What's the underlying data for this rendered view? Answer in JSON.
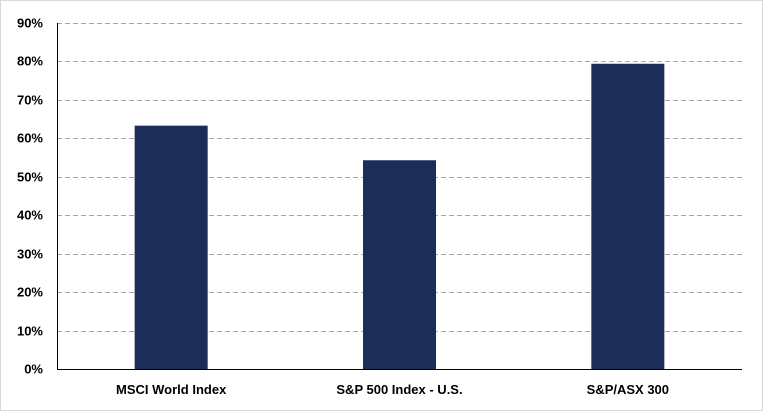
{
  "chart_data": {
    "type": "bar",
    "categories": [
      "MSCI World Index",
      "S&P 500 Index - U.S.",
      "S&P/ASX 300"
    ],
    "values": [
      63.3,
      54.3,
      79.4
    ],
    "ylim": [
      0,
      90
    ],
    "yticks": [
      0,
      10,
      20,
      30,
      40,
      50,
      60,
      70,
      80,
      90
    ],
    "ytick_labels": [
      "0%",
      "10%",
      "20%",
      "30%",
      "40%",
      "50%",
      "60%",
      "70%",
      "80%",
      "90%"
    ],
    "title": "",
    "xlabel": "",
    "ylabel": "",
    "grid": true,
    "grid_style": "dashed",
    "bar_color": "#1c2e57",
    "grid_color": "#a6a6a6",
    "axis_color": "#000000",
    "legend": "none"
  }
}
